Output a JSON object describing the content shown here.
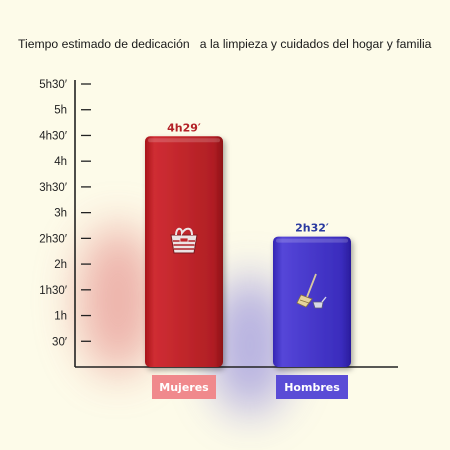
{
  "chart_data": {
    "type": "bar",
    "title": "Tiempo estimado de dedicación   a la limpieza y cuidados del hogar y familia",
    "categories": [
      "Mujeres",
      "Hombres"
    ],
    "values": [
      269,
      152
    ],
    "value_labels": [
      "4h29′",
      "2h32′"
    ],
    "unit": "minutes",
    "ylim": [
      0,
      330
    ],
    "yticks": [
      {
        "value": 30,
        "label": "30′"
      },
      {
        "value": 60,
        "label": "1h"
      },
      {
        "value": 90,
        "label": "1h30′"
      },
      {
        "value": 120,
        "label": "2h"
      },
      {
        "value": 150,
        "label": "2h30′"
      },
      {
        "value": 180,
        "label": "3h"
      },
      {
        "value": 210,
        "label": "3h30′"
      },
      {
        "value": 240,
        "label": "4h"
      },
      {
        "value": 270,
        "label": "4h30′"
      },
      {
        "value": 300,
        "label": "5h"
      },
      {
        "value": 330,
        "label": "5h30′"
      }
    ],
    "grid": false,
    "legend": "none",
    "colors": {
      "bars": [
        "#c0262b",
        "#4437c8"
      ],
      "value_labels": [
        "#b32127",
        "#2a3aa0"
      ],
      "category_boxes": [
        "#f0898c",
        "#5a4cd6"
      ],
      "background": "#fdfbe9"
    },
    "icons": [
      "laundry-icon",
      "broom-icon"
    ]
  }
}
